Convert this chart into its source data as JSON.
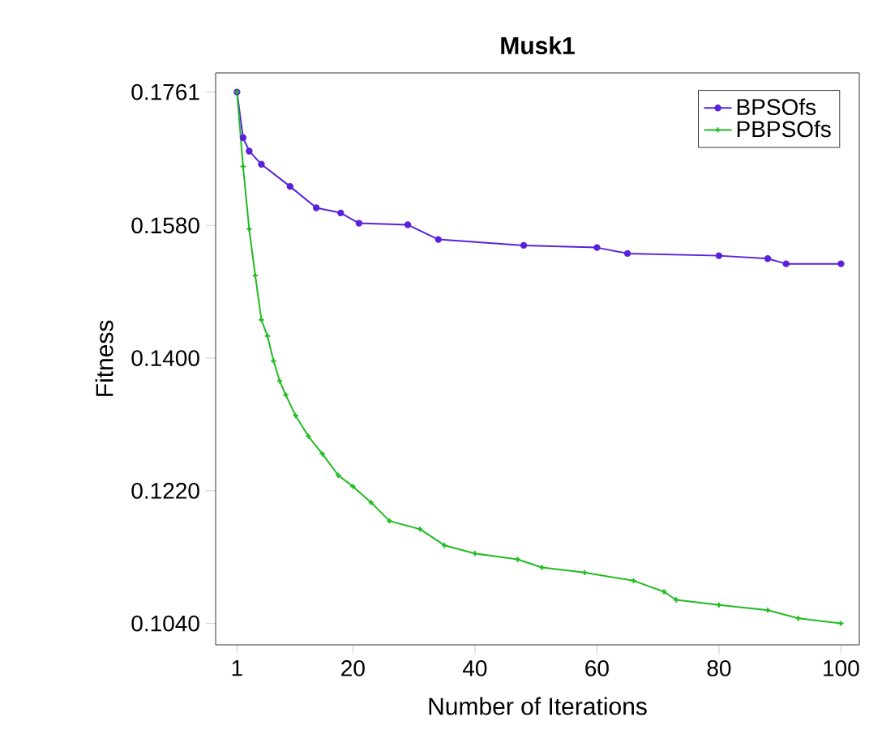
{
  "chart_data": {
    "type": "line",
    "title": "Musk1",
    "xlabel": "Number of Iterations",
    "ylabel": "Fitness",
    "xlim": [
      -2.5,
      103
    ],
    "ylim": [
      0.1011,
      0.1787
    ],
    "xticks": [
      1,
      20,
      40,
      60,
      80,
      100
    ],
    "yticks": [
      {
        "value": 0.1761,
        "label": "0.1761"
      },
      {
        "value": 0.158,
        "label": "0.1580"
      },
      {
        "value": 0.14,
        "label": "0.1400"
      },
      {
        "value": 0.122,
        "label": "0.1220"
      },
      {
        "value": 0.104,
        "label": "0.1040"
      }
    ],
    "legend": "top right",
    "grid": false,
    "line_style": "solid",
    "series": [
      {
        "name": "BPSOfs",
        "color": "#5a22dd",
        "marker": "circle",
        "x": [
          1,
          2,
          3,
          5,
          9.7,
          14,
          18,
          21,
          29,
          34,
          48,
          60,
          65,
          80,
          88,
          91,
          100
        ],
        "values": [
          0.1761,
          0.1699,
          0.1681,
          0.1663,
          0.1633,
          0.1604,
          0.1597,
          0.1583,
          0.1581,
          0.1561,
          0.1553,
          0.155,
          0.1542,
          0.1539,
          0.1535,
          0.1528,
          0.1528
        ]
      },
      {
        "name": "PBPSOfs",
        "color": "#22bb22",
        "marker": "cross",
        "x": [
          1,
          2,
          3,
          4,
          5,
          6,
          7,
          8,
          9,
          10.6,
          12.7,
          15,
          17.6,
          20,
          23,
          26,
          31,
          35,
          40,
          47,
          51,
          58,
          66,
          71,
          73,
          80,
          88,
          93,
          100
        ],
        "values": [
          0.1761,
          0.166,
          0.1575,
          0.1512,
          0.1452,
          0.143,
          0.1396,
          0.1369,
          0.135,
          0.1322,
          0.1294,
          0.127,
          0.1241,
          0.1226,
          0.1204,
          0.1179,
          0.1168,
          0.1146,
          0.1135,
          0.1127,
          0.1116,
          0.1109,
          0.1098,
          0.1083,
          0.1072,
          0.1065,
          0.1058,
          0.1047,
          0.104
        ]
      }
    ]
  }
}
